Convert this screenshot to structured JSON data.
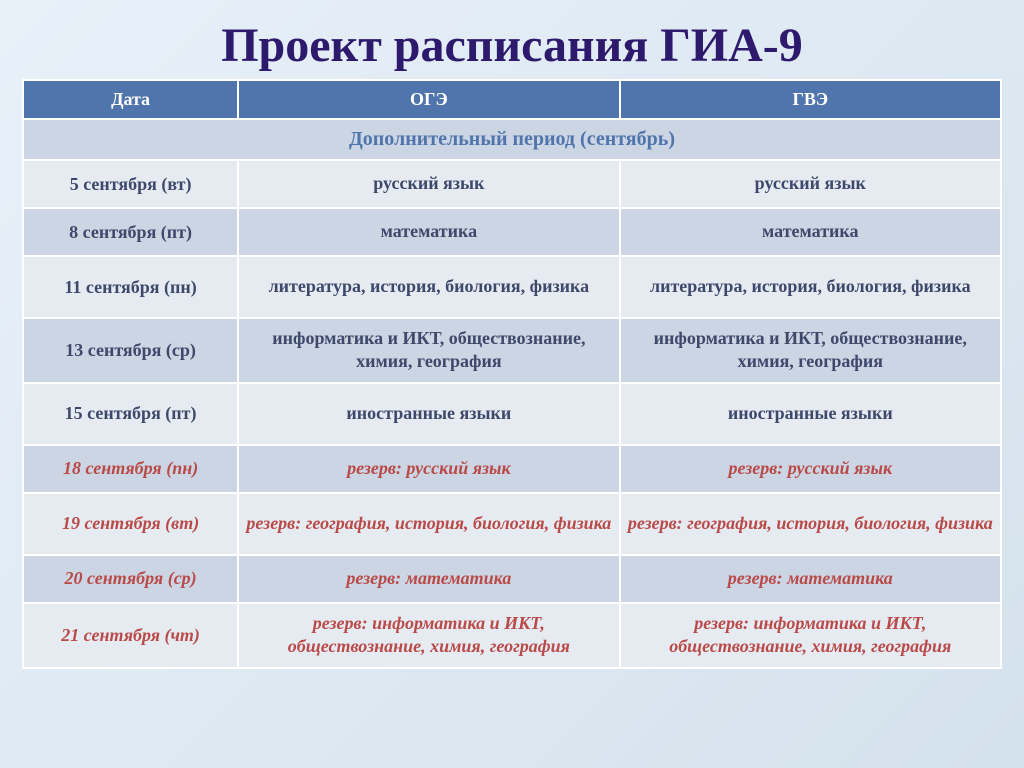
{
  "title": "Проект расписания ГИА-9",
  "columns": [
    "Дата",
    "ОГЭ",
    "ГВЭ"
  ],
  "subheader": "Дополнительный период (сентябрь)",
  "colors": {
    "title": "#2e1a6d",
    "header_bg": "#5075ac",
    "header_text": "#ffffff",
    "row_alt_a": "#e6ebf2",
    "row_alt_b": "#cbd5e3",
    "regular_text": "#3d486b",
    "reserve_text": "#b94a48",
    "subheader_text": "#5075ac",
    "border": "#ffffff",
    "page_bg_start": "#e8f0f8",
    "page_bg_end": "#d4e2ed"
  },
  "rows": [
    {
      "date": "5 сентября (вт)",
      "oge": "русский язык",
      "gve": "русский язык",
      "style": "regular",
      "shade": "a",
      "h": "med"
    },
    {
      "date": "8 сентября (пт)",
      "oge": "математика",
      "gve": "математика",
      "style": "regular",
      "shade": "b",
      "h": "med"
    },
    {
      "date": "11 сентября (пн)",
      "oge": "литература, история, биология, физика",
      "gve": "литература, история, биология, физика",
      "style": "regular",
      "shade": "a",
      "h": "tall"
    },
    {
      "date": "13 сентября (ср)",
      "oge": "информатика и ИКТ, обществознание, химия, география",
      "gve": "информатика и ИКТ, обществознание, химия, география",
      "style": "regular",
      "shade": "b",
      "h": "tall"
    },
    {
      "date": "15 сентября (пт)",
      "oge": "иностранные языки",
      "gve": "иностранные языки",
      "style": "regular",
      "shade": "a",
      "h": "tall"
    },
    {
      "date": "18 сентября (пн)",
      "oge": "резерв: русский язык",
      "gve": "резерв: русский язык",
      "style": "reserve",
      "shade": "b",
      "h": "med"
    },
    {
      "date": "19 сентября (вт)",
      "oge": "резерв: география, история, биология, физика",
      "gve": "резерв: география, история, биология, физика",
      "style": "reserve",
      "shade": "a",
      "h": "tall"
    },
    {
      "date": "20 сентября (ср)",
      "oge": "резерв: математика",
      "gve": "резерв: математика",
      "style": "reserve",
      "shade": "b",
      "h": "med"
    },
    {
      "date": "21 сентября (чт)",
      "oge": "резерв: информатика и ИКТ, обществознание, химия, география",
      "gve": "резерв: информатика и ИКТ, обществознание, химия, география",
      "style": "reserve",
      "shade": "a",
      "h": "tall"
    }
  ]
}
